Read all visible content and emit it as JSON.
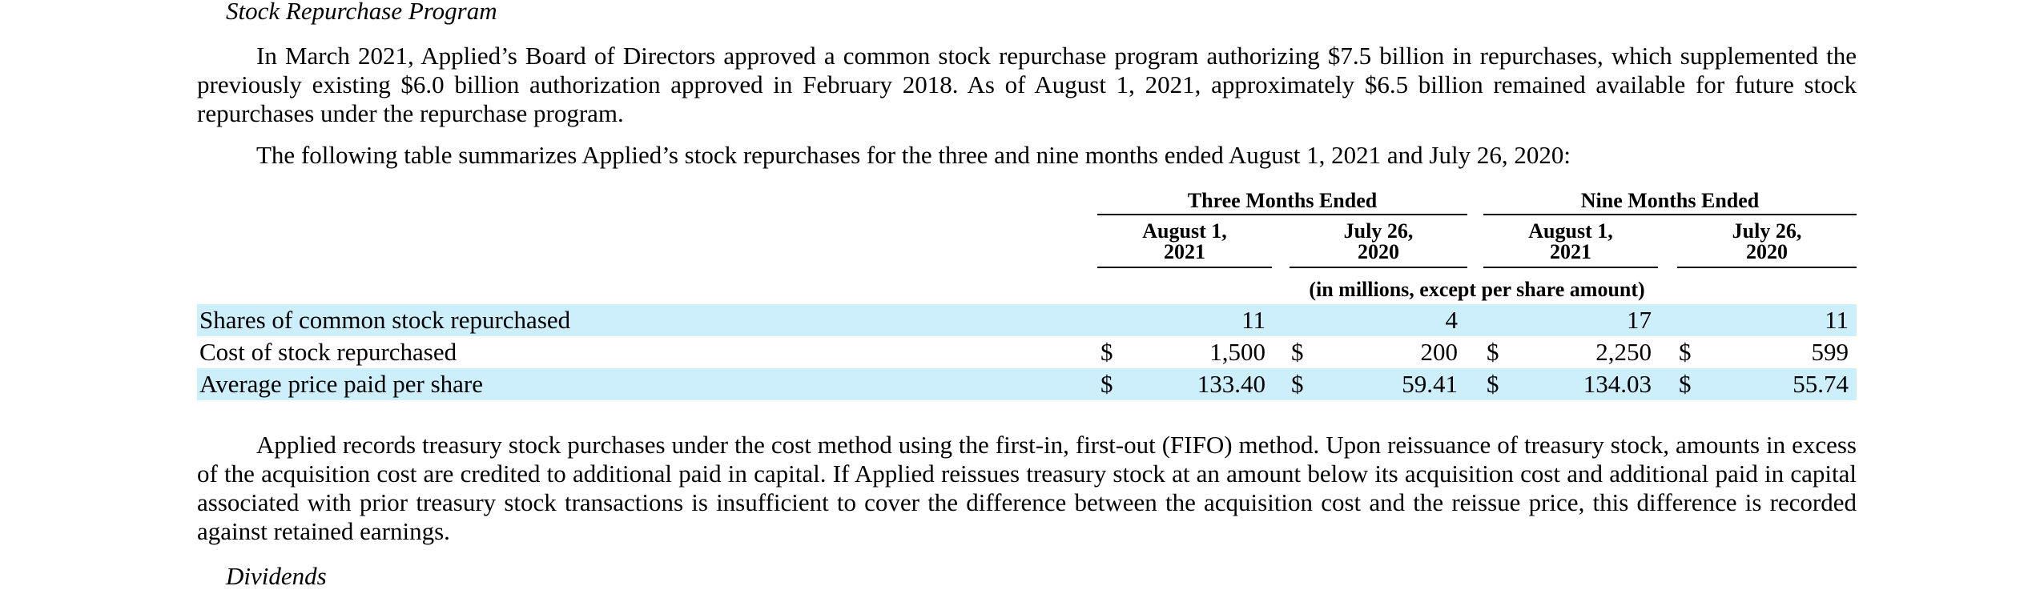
{
  "sections": {
    "repurchase_heading": "Stock Repurchase Program",
    "dividends_heading": "Dividends"
  },
  "paragraphs": {
    "p1": "In March 2021, Applied’s Board of Directors approved a common stock repurchase program authorizing $7.5 billion in repurchases, which supplemented the previously existing $6.0 billion authorization approved in February 2018. As of August 1, 2021, approximately $6.5 billion remained available for future stock repurchases under the repurchase program.",
    "intro": "The following table summarizes Applied’s stock repurchases for the three and nine months ended August 1, 2021 and July 26, 2020:",
    "p2": "Applied records treasury stock purchases under the cost method using the first-in, first-out (FIFO) method. Upon reissuance of treasury stock, amounts in excess of the acquisition cost are credited to additional paid in capital. If Applied reissues treasury stock at an amount below its acquisition cost and additional paid in capital associated with prior treasury stock transactions is insufficient to cover the difference between the acquisition cost and the reissue price, this difference is recorded against retained earnings."
  },
  "table": {
    "group_headers": [
      "Three Months Ended",
      "Nine Months Ended"
    ],
    "columns": [
      {
        "line1": "August 1,",
        "line2": "2021"
      },
      {
        "line1": "July 26,",
        "line2": "2020"
      },
      {
        "line1": "August 1,",
        "line2": "2021"
      },
      {
        "line1": "July 26,",
        "line2": "2020"
      }
    ],
    "units_note": "(in millions, except per share amount)",
    "currency_symbol": "$",
    "rows": [
      {
        "label": "Shares of common stock repurchased",
        "values": [
          "11",
          "4",
          "17",
          "11"
        ]
      },
      {
        "label": "Cost of stock repurchased",
        "values": [
          "1,500",
          "200",
          "2,250",
          "599"
        ]
      },
      {
        "label": "Average price paid per share",
        "values": [
          "133.40",
          "59.41",
          "134.03",
          "55.74"
        ]
      }
    ]
  },
  "colors": {
    "row_highlight": "#cdeefb"
  }
}
